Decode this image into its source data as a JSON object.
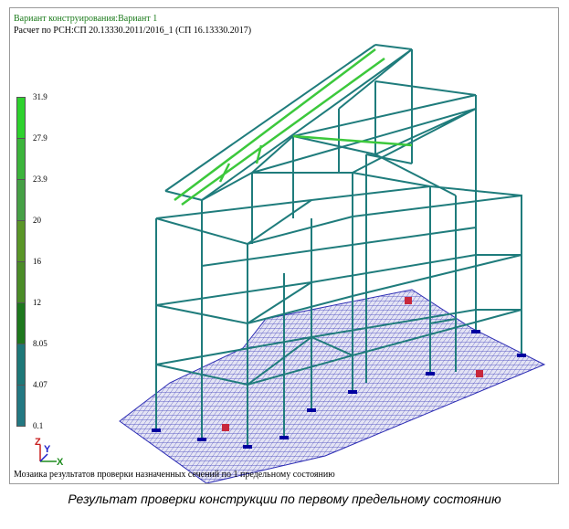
{
  "header": {
    "variant_line": "Вариант конструирования:Вариант 1",
    "calc_line": "Расчет по РСН:СП 20.13330.2011/2016_1 (СП 16.13330.2017)"
  },
  "legend": {
    "ticks": [
      "31.9",
      "27.9",
      "23.9",
      "20",
      "16",
      "12",
      "8.05",
      "4.07",
      "0.1"
    ],
    "colors": [
      "#2ed22e",
      "#3cb43c",
      "#46a046",
      "#5a9628",
      "#4b8c28",
      "#1e781e",
      "#1e7878",
      "#237882",
      "#1e6e6e"
    ]
  },
  "axis_triad": {
    "z": "Z",
    "y": "Y",
    "x": "X"
  },
  "footer": "Мозаика результатов проверки назначенных сечений по 1 предельному состоянию",
  "caption": "Результат проверки конструкции по первому предельному состоянию",
  "colors": {
    "frame": "#1f7c7c",
    "slab_mesh": "#2d2db4",
    "highlight": "#3cc83c"
  }
}
